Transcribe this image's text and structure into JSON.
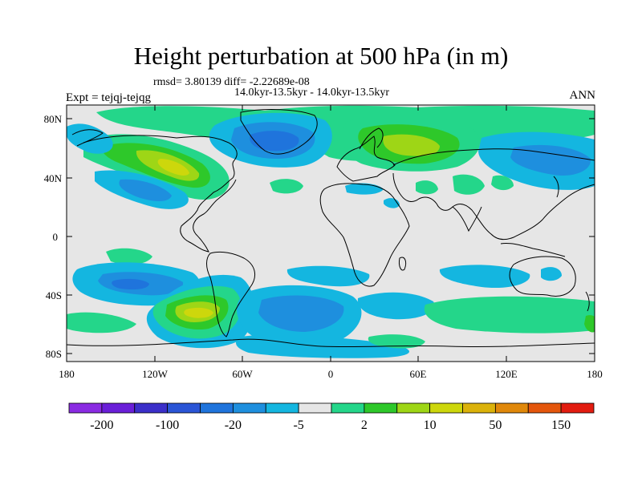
{
  "title": "Height perturbation at 500 hPa (in m)",
  "stats_line": "rmsd= 3.80139 diff= -2.22689e-08",
  "period_line": "14.0kyr-13.5kyr - 14.0kyr-13.5kyr",
  "experiment_label": "Expt = tejqj-tejqg",
  "season_label": "ANN",
  "axes": {
    "y_ticks": [
      "80N",
      "40N",
      "0",
      "40S",
      "80S"
    ],
    "x_ticks": [
      "180",
      "120W",
      "60W",
      "0",
      "60E",
      "120E",
      "180"
    ]
  },
  "colorbar": {
    "colors": [
      "#8a2be2",
      "#6a1fd8",
      "#3b2fc9",
      "#2a55d6",
      "#1f74dc",
      "#1e8fde",
      "#14b6e0",
      "#e6e6e6",
      "#24d68a",
      "#2ec82a",
      "#9ed616",
      "#cdd70c",
      "#dbb20a",
      "#e0880a",
      "#e4560c",
      "#e21c10"
    ],
    "labels": [
      "-200",
      "-100",
      "-20",
      "-5",
      "2",
      "10",
      "50",
      "150"
    ]
  },
  "field_colors": {
    "background": "#e6e6e6",
    "neg_light": "#14b6e0",
    "neg_mid": "#1e8fde",
    "neg_strong": "#1f74dc",
    "pos_light": "#24d68a",
    "pos_mid": "#2ec82a",
    "pos_strong": "#9ed616",
    "pos_peak": "#cdd70c"
  }
}
